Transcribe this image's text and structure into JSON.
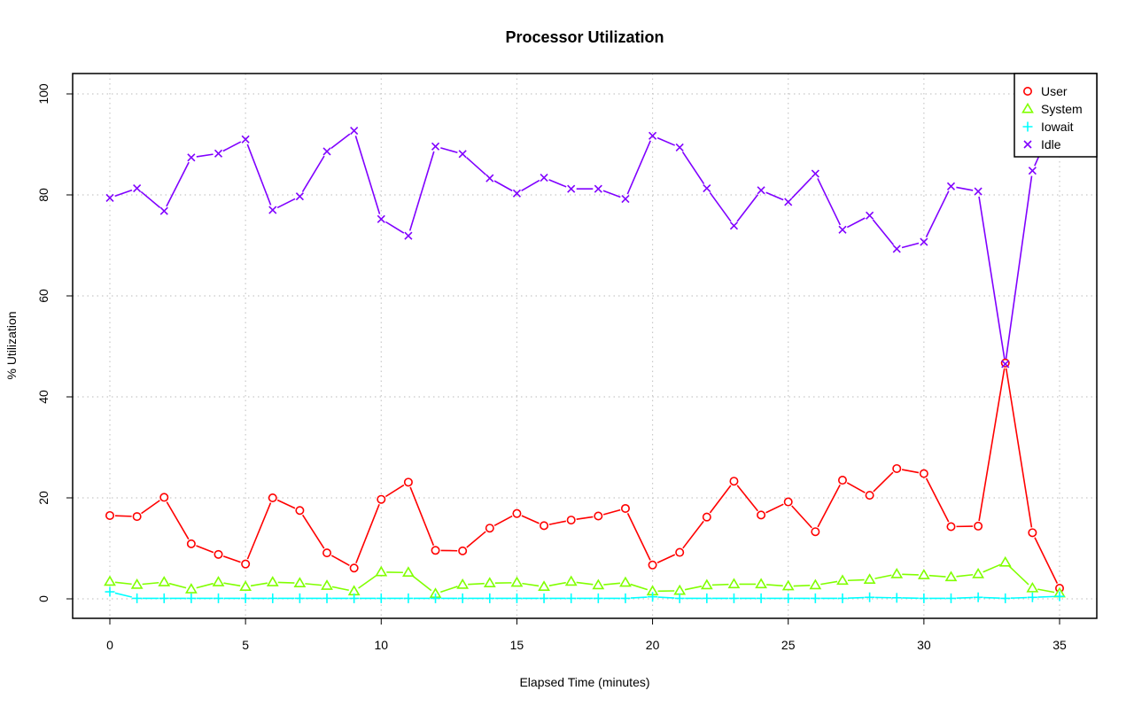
{
  "chart_data": {
    "type": "line",
    "title": "Processor Utilization",
    "xlabel": "Elapsed Time (minutes)",
    "ylabel": "% Utilization",
    "xlim": [
      0,
      35
    ],
    "ylim": [
      0,
      100
    ],
    "x_ticks": [
      0,
      5,
      10,
      15,
      20,
      25,
      30,
      35
    ],
    "y_ticks": [
      0,
      20,
      40,
      60,
      80,
      100
    ],
    "grid": true,
    "legend_position": "top-right",
    "x": [
      0,
      1,
      2,
      3,
      4,
      5,
      6,
      7,
      8,
      9,
      10,
      11,
      12,
      13,
      14,
      15,
      16,
      17,
      18,
      19,
      20,
      21,
      22,
      23,
      24,
      25,
      26,
      27,
      28,
      29,
      30,
      31,
      32,
      33,
      34,
      35
    ],
    "series": [
      {
        "name": "User",
        "color": "#ff0000",
        "marker": "circle",
        "values": [
          16.5,
          16.3,
          20.1,
          10.9,
          8.8,
          6.9,
          20.0,
          17.5,
          9.1,
          6.1,
          19.7,
          23.1,
          9.6,
          9.5,
          14.0,
          16.9,
          14.5,
          15.6,
          16.4,
          17.9,
          6.7,
          9.2,
          16.2,
          23.3,
          16.6,
          19.2,
          13.3,
          23.5,
          20.5,
          25.8,
          24.8,
          14.3,
          14.4,
          46.7,
          13.1,
          2.1
        ]
      },
      {
        "name": "System",
        "color": "#80ff00",
        "marker": "triangle",
        "values": [
          3.4,
          2.8,
          3.3,
          1.9,
          3.3,
          2.4,
          3.3,
          3.1,
          2.6,
          1.5,
          5.3,
          5.2,
          1.0,
          2.8,
          3.1,
          3.2,
          2.4,
          3.4,
          2.7,
          3.2,
          1.5,
          1.6,
          2.7,
          2.9,
          2.9,
          2.5,
          2.7,
          3.6,
          3.8,
          4.9,
          4.7,
          4.3,
          4.9,
          7.2,
          2.1,
          1.1
        ]
      },
      {
        "name": "Iowait",
        "color": "#00ffff",
        "marker": "plus",
        "values": [
          1.4,
          0.1,
          0.1,
          0.1,
          0.1,
          0.1,
          0.1,
          0.1,
          0.1,
          0.1,
          0.1,
          0.1,
          0.1,
          0.1,
          0.1,
          0.1,
          0.1,
          0.1,
          0.1,
          0.1,
          0.4,
          0.1,
          0.1,
          0.1,
          0.1,
          0.1,
          0.1,
          0.1,
          0.3,
          0.2,
          0.1,
          0.1,
          0.3,
          0.1,
          0.3,
          0.5
        ]
      },
      {
        "name": "Idle",
        "color": "#8000ff",
        "marker": "x",
        "values": [
          79.4,
          81.3,
          76.8,
          87.4,
          88.2,
          91.0,
          77.0,
          79.7,
          88.6,
          92.7,
          75.2,
          71.9,
          89.6,
          88.1,
          83.3,
          80.3,
          83.4,
          81.2,
          81.2,
          79.2,
          91.7,
          89.4,
          81.3,
          73.9,
          80.9,
          78.6,
          84.2,
          73.1,
          75.9,
          69.3,
          70.7,
          81.7,
          80.7,
          46.5,
          84.8,
          96.8
        ]
      }
    ]
  }
}
